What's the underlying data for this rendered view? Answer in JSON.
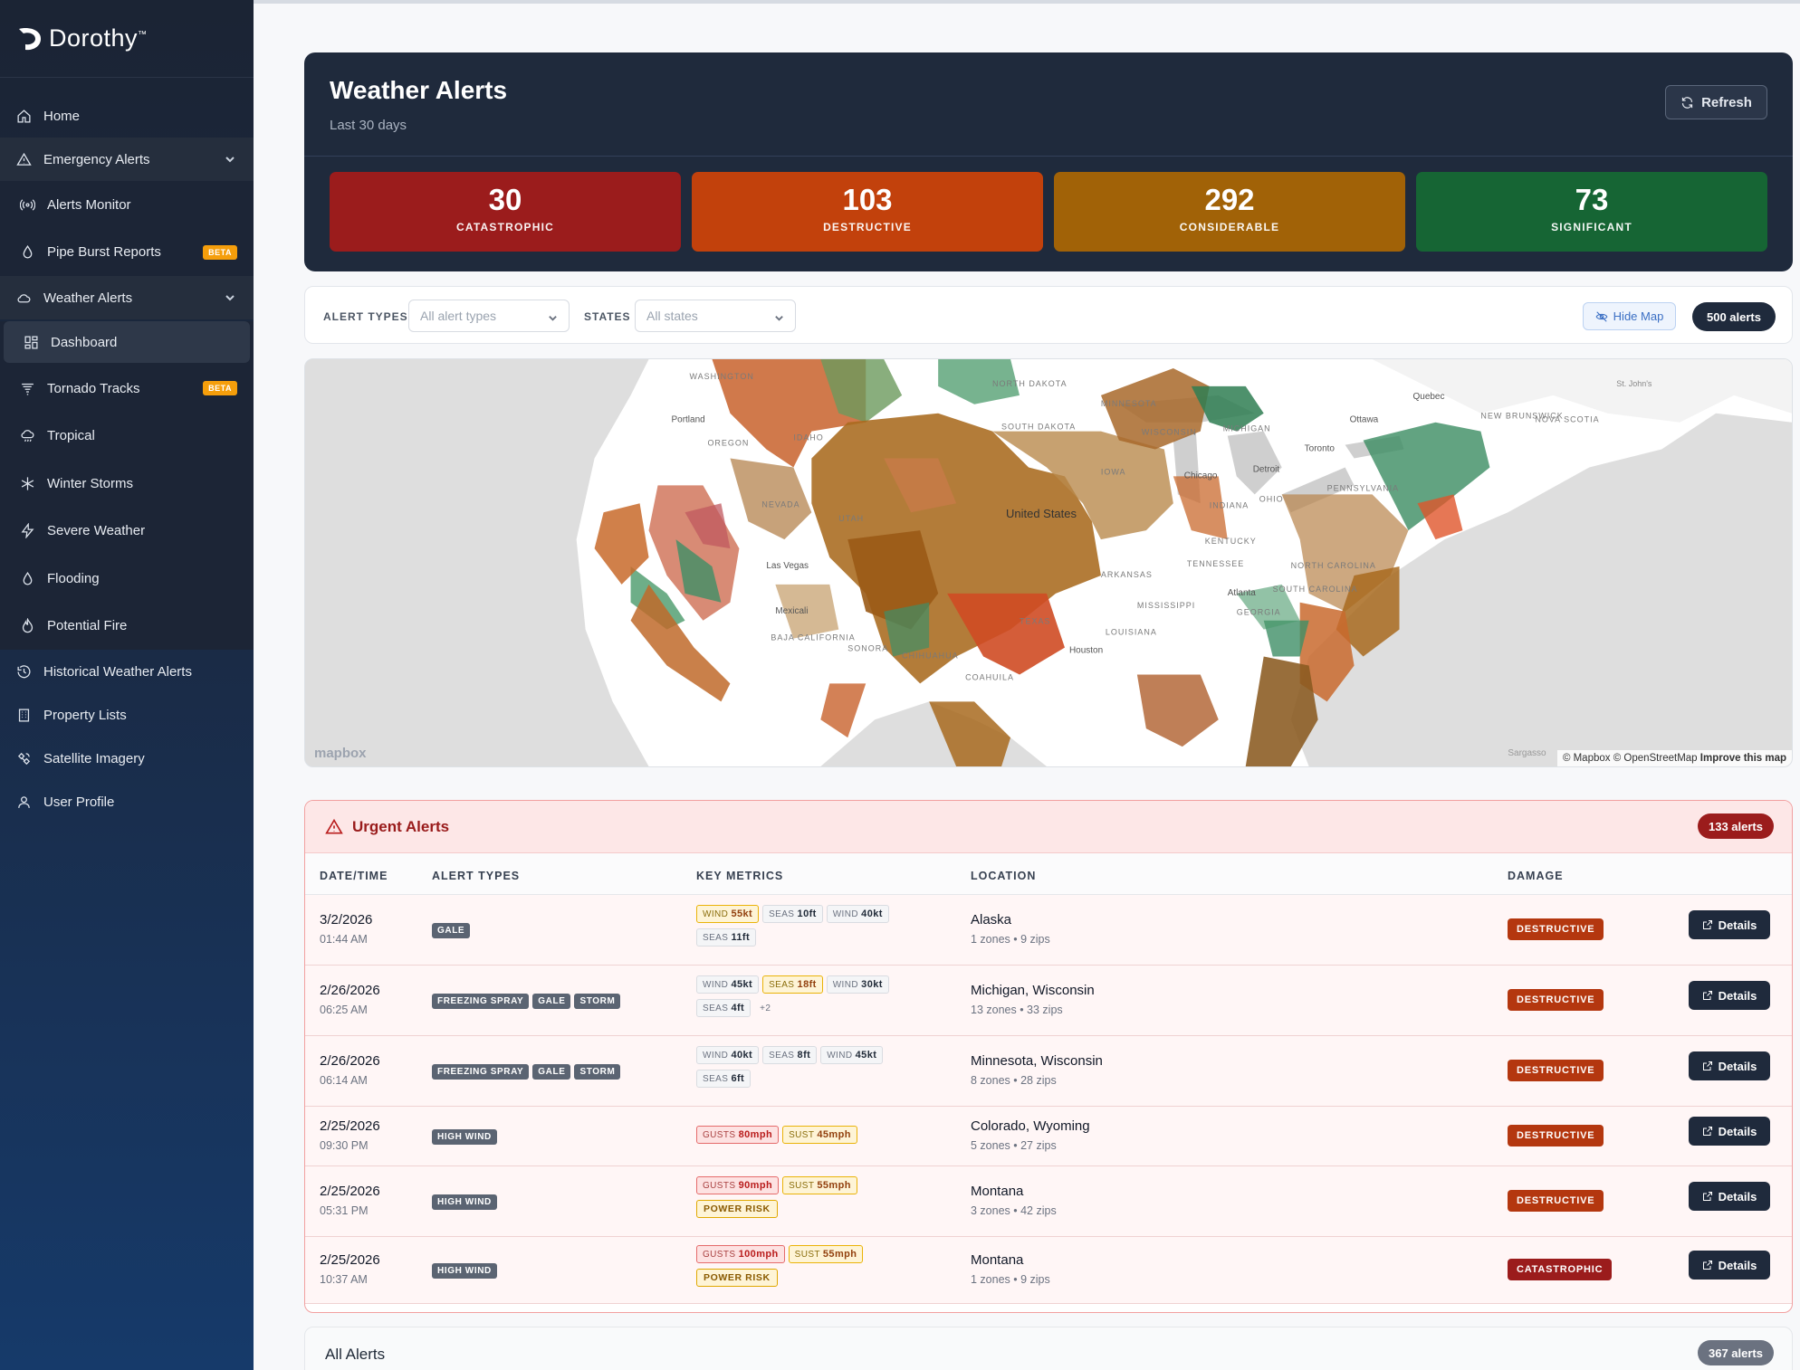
{
  "brand": {
    "name": "Dorothy",
    "tm": "™"
  },
  "sidebar": {
    "home": "Home",
    "emergency": "Emergency Alerts",
    "alerts_monitor": "Alerts Monitor",
    "pipe_burst": "Pipe Burst Reports",
    "weather_alerts": "Weather Alerts",
    "dashboard": "Dashboard",
    "tornado_tracks": "Tornado Tracks",
    "tropical": "Tropical",
    "winter_storms": "Winter Storms",
    "severe_weather": "Severe Weather",
    "flooding": "Flooding",
    "potential_fire": "Potential Fire",
    "historical": "Historical Weather Alerts",
    "property_lists": "Property Lists",
    "satellite": "Satellite Imagery",
    "user_profile": "User Profile",
    "beta": "BETA"
  },
  "hero": {
    "title": "Weather Alerts",
    "subtitle": "Last 30 days",
    "refresh": "Refresh",
    "stats": [
      {
        "value": "30",
        "label": "CATASTROPHIC",
        "color": "#9b1c1c"
      },
      {
        "value": "103",
        "label": "DESTRUCTIVE",
        "color": "#c2410c"
      },
      {
        "value": "292",
        "label": "CONSIDERABLE",
        "color": "#a16207"
      },
      {
        "value": "73",
        "label": "SIGNIFICANT",
        "color": "#166534"
      }
    ]
  },
  "filters": {
    "alert_types_label": "ALERT TYPES",
    "alert_types_placeholder": "All alert types",
    "states_label": "STATES",
    "states_placeholder": "All states",
    "hide_map": "Hide Map",
    "count": "500 alerts"
  },
  "map": {
    "attribution": "© Mapbox © OpenStreetMap",
    "improve": "Improve this map",
    "logo": "mapbox",
    "labels": {
      "washington": "WASHINGTON",
      "portland": "Portland",
      "oregon": "OREGON",
      "idaho": "IDAHO",
      "nevada": "NEVADA",
      "utah": "UTAH",
      "lasvegas": "Las Vegas",
      "mexicali": "Mexicali",
      "baja": "BAJA CALIFORNIA",
      "sonora": "SONORA",
      "chihuahua": "CHIHUAHUA",
      "coahuila": "COAHUILA",
      "texas": "TEXAS",
      "houston": "Houston",
      "north_dakota": "NORTH DAKOTA",
      "south_dakota": "SOUTH DAKOTA",
      "minnesota": "MINNESOTA",
      "wisconsin": "WISCONSIN",
      "michigan": "MICHIGAN",
      "iowa": "IOWA",
      "chicago": "Chicago",
      "detroit": "Detroit",
      "indiana": "INDIANA",
      "ohio": "OHIO",
      "kentucky": "KENTUCKY",
      "tennessee": "TENNESSEE",
      "arkansas": "ARKANSAS",
      "mississippi": "MISSISSIPPI",
      "louisiana": "LOUISIANA",
      "georgia": "GEORGIA",
      "atlanta": "Atlanta",
      "north_carolina": "NORTH CAROLINA",
      "south_carolina": "SOUTH CAROLINA",
      "pennsylvania": "PENNSYLVANIA",
      "toronto": "Toronto",
      "ottawa": "Ottawa",
      "quebec": "Quebec",
      "new_brunswick": "NEW BRUNSWICK",
      "nova_scotia": "NOVA SCOTIA",
      "st_johns": "St. John's",
      "united_states": "United States",
      "sargasso": "Sargasso"
    }
  },
  "urgent": {
    "title": "Urgent Alerts",
    "count": "133 alerts",
    "columns": [
      "DATE/TIME",
      "ALERT TYPES",
      "KEY METRICS",
      "LOCATION",
      "DAMAGE"
    ],
    "details_label": "Details",
    "rows": [
      {
        "date": "3/2/2026",
        "time": "01:44 AM",
        "types": [
          "GALE"
        ],
        "metrics": [
          {
            "k": "WIND",
            "v": "55kt",
            "s": "warn"
          },
          {
            "k": "SEAS",
            "v": "10ft",
            "s": ""
          },
          {
            "k": "WIND",
            "v": "40kt",
            "s": ""
          },
          {
            "k": "SEAS",
            "v": "11ft",
            "s": ""
          }
        ],
        "location": "Alaska",
        "zones": "1 zones • 9 zips",
        "damage": "DESTRUCTIVE"
      },
      {
        "date": "2/26/2026",
        "time": "06:25 AM",
        "types": [
          "FREEZING SPRAY",
          "GALE",
          "STORM"
        ],
        "metrics": [
          {
            "k": "WIND",
            "v": "45kt",
            "s": ""
          },
          {
            "k": "SEAS",
            "v": "18ft",
            "s": "warn"
          },
          {
            "k": "WIND",
            "v": "30kt",
            "s": ""
          },
          {
            "k": "SEAS",
            "v": "4ft",
            "s": ""
          }
        ],
        "more": "+2",
        "location": "Michigan, Wisconsin",
        "zones": "13 zones • 33 zips",
        "damage": "DESTRUCTIVE"
      },
      {
        "date": "2/26/2026",
        "time": "06:14 AM",
        "types": [
          "FREEZING SPRAY",
          "GALE",
          "STORM"
        ],
        "metrics": [
          {
            "k": "WIND",
            "v": "40kt",
            "s": ""
          },
          {
            "k": "SEAS",
            "v": "8ft",
            "s": ""
          },
          {
            "k": "WIND",
            "v": "45kt",
            "s": ""
          },
          {
            "k": "SEAS",
            "v": "6ft",
            "s": ""
          }
        ],
        "location": "Minnesota, Wisconsin",
        "zones": "8 zones • 28 zips",
        "damage": "DESTRUCTIVE"
      },
      {
        "date": "2/25/2026",
        "time": "09:30 PM",
        "types": [
          "HIGH WIND"
        ],
        "metrics": [
          {
            "k": "GUSTS",
            "v": "80mph",
            "s": "red"
          },
          {
            "k": "SUST",
            "v": "45mph",
            "s": "warn"
          }
        ],
        "location": "Colorado, Wyoming",
        "zones": "5 zones • 27 zips",
        "damage": "DESTRUCTIVE"
      },
      {
        "date": "2/25/2026",
        "time": "05:31 PM",
        "types": [
          "HIGH WIND"
        ],
        "metrics": [
          {
            "k": "GUSTS",
            "v": "90mph",
            "s": "red"
          },
          {
            "k": "SUST",
            "v": "55mph",
            "s": "warn"
          }
        ],
        "power": "POWER RISK",
        "location": "Montana",
        "zones": "3 zones • 42 zips",
        "damage": "DESTRUCTIVE"
      },
      {
        "date": "2/25/2026",
        "time": "10:37 AM",
        "types": [
          "HIGH WIND"
        ],
        "metrics": [
          {
            "k": "GUSTS",
            "v": "100mph",
            "s": "red"
          },
          {
            "k": "SUST",
            "v": "55mph",
            "s": "warn"
          }
        ],
        "power": "POWER RISK",
        "location": "Montana",
        "zones": "1 zones • 9 zips",
        "damage": "CATASTROPHIC"
      }
    ]
  },
  "all_alerts": {
    "title": "All Alerts",
    "count": "367 alerts"
  }
}
